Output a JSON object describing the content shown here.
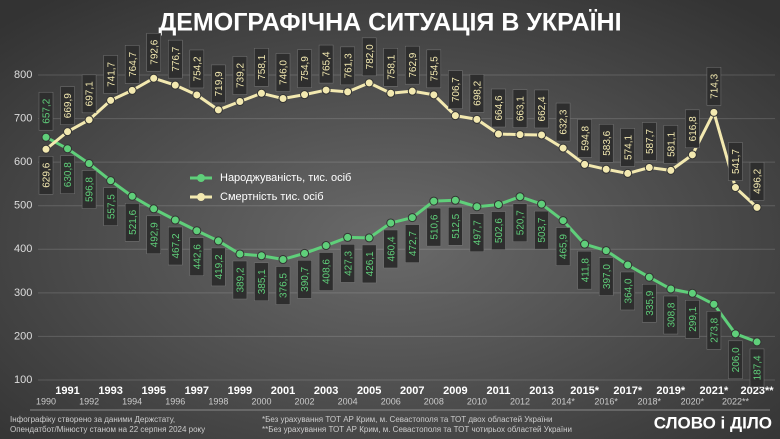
{
  "chart_data": {
    "type": "line",
    "title": "ДЕМОГРАФІЧНА СИТУАЦІЯ В УКРАЇНІ",
    "categories": [
      "1990",
      "1991",
      "1992",
      "1993",
      "1994",
      "1995",
      "1996",
      "1997",
      "1998",
      "1999",
      "2000",
      "2001",
      "2002",
      "2003",
      "2004",
      "2005",
      "2006",
      "2007",
      "2008",
      "2009",
      "2010",
      "2011",
      "2012",
      "2013",
      "2014*",
      "2015*",
      "2016*",
      "2017*",
      "2018*",
      "2019*",
      "2020*",
      "2021*",
      "2022**",
      "2023**"
    ],
    "series": [
      {
        "name": "Народжуваність, тис. осіб",
        "color": "#5fcf7a",
        "values": [
          657.2,
          630.8,
          596.8,
          557.5,
          521.6,
          492.9,
          467.2,
          442.6,
          419.2,
          389.2,
          385.1,
          376.5,
          390.7,
          408.6,
          427.3,
          426.1,
          460.4,
          472.7,
          510.6,
          512.5,
          497.7,
          502.6,
          520.7,
          503.7,
          465.9,
          411.8,
          397.0,
          364.0,
          335.9,
          308.8,
          299.1,
          273.8,
          206.0,
          187.4
        ],
        "value_labels": [
          "657,2",
          "630,8",
          "596,8",
          "557,5",
          "521,6",
          "492,9",
          "467,2",
          "442,6",
          "419,2",
          "389,2",
          "385,1",
          "376,5",
          "390,7",
          "408,6",
          "427,3",
          "426,1",
          "460,4",
          "472,7",
          "510,6",
          "512,5",
          "497,7",
          "502,6",
          "520,7",
          "503,7",
          "465,9",
          "411,8",
          "397,0",
          "364,0",
          "335,9",
          "308,8",
          "299,1",
          "273,8",
          "206,0",
          "187,4"
        ]
      },
      {
        "name": "Смертність тис. осіб",
        "color": "#f3e9b0",
        "values": [
          629.6,
          669.9,
          697.1,
          741.7,
          764.7,
          792.6,
          776.7,
          754.2,
          719.9,
          739.2,
          758.1,
          746.0,
          754.9,
          765.4,
          761.3,
          782.0,
          758.1,
          762.9,
          754.5,
          706.7,
          698.2,
          664.6,
          663.1,
          662.4,
          632.3,
          594.8,
          583.6,
          574.1,
          587.7,
          581.1,
          616.8,
          714.3,
          541.7,
          496.2
        ],
        "value_labels": [
          "629,6",
          "669,9",
          "697,1",
          "741,7",
          "764,7",
          "792,6",
          "776,7",
          "754,2",
          "719,9",
          "739,2",
          "758,1",
          "746,0",
          "754,9",
          "765,4",
          "761,3",
          "782,0",
          "758,1",
          "762,9",
          "754,5",
          "706,7",
          "698,2",
          "664,6",
          "663,1",
          "662,4",
          "632,3",
          "594,8",
          "583,6",
          "574,1",
          "587,7",
          "581,1",
          "616,8",
          "714,3",
          "541,7",
          "496,2"
        ]
      }
    ],
    "ylim": [
      100,
      800
    ],
    "yticks": [
      100,
      200,
      300,
      400,
      500,
      600,
      700,
      800
    ],
    "grid": true
  },
  "source": [
    "Інфографіку створено за даними Держстату,",
    "Опендатбот/Мінюсту станом на 22 серпня 2024 року"
  ],
  "notes": [
    "*Без урахування ТОТ АР Крим, м. Севастополя та ТОТ двох областей України",
    "**Без урахування ТОТ АР Крим, м. Севастополя та ТОТ чотирьох областей України"
  ],
  "logo": "СЛОВО і ДІЛО"
}
